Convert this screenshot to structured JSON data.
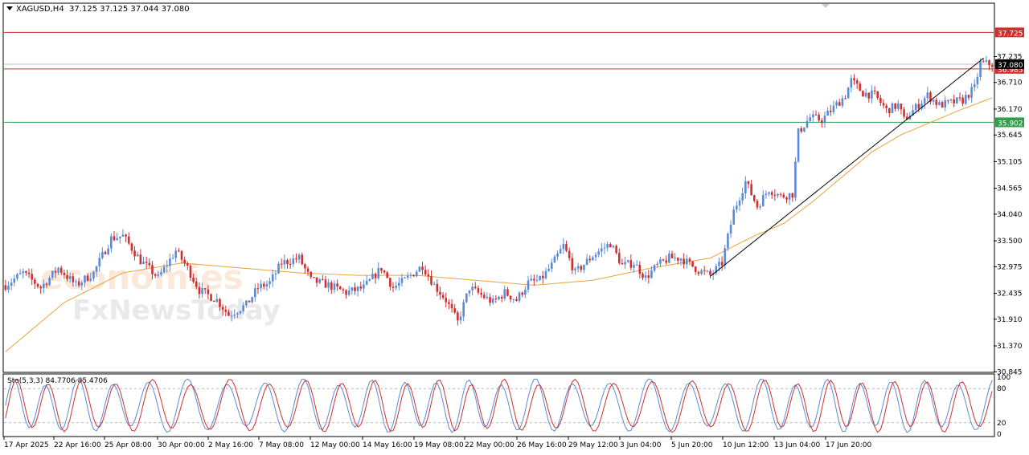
{
  "header": {
    "symbol": "XAGUSD,H4",
    "ohlc": "37.125 37.125 37.044 37.080"
  },
  "oscillator": {
    "label": "Sto(5,3,3) 84.7706 85.4706",
    "scale": [
      "100",
      "80",
      "20",
      "0"
    ]
  },
  "watermark": {
    "line1": "economies",
    "line2": "FxNewsToday"
  },
  "colors": {
    "bull": "#5b8bd6",
    "bear": "#d12f2f",
    "ma": "#e8a33c",
    "resistance": "#d12f2f",
    "support": "#2e9e4a",
    "trendline": "#000000",
    "sto_main": "#5b8bd6",
    "sto_signal": "#d12f2f"
  },
  "chart_data": {
    "type": "candlestick",
    "ylim": [
      30.85,
      38.3
    ],
    "price_ticks": [
      "37.235",
      "36.710",
      "36.170",
      "35.645",
      "35.105",
      "34.565",
      "34.040",
      "33.500",
      "32.975",
      "32.435",
      "31.910",
      "31.370",
      "30.845"
    ],
    "x_ticks": [
      "17 Apr 2025",
      "22 Apr 16:00",
      "25 Apr 08:00",
      "30 Apr 00:00",
      "2 May 16:00",
      "7 May 08:00",
      "12 May 00:00",
      "14 May 16:00",
      "19 May 08:00",
      "22 May 00:00",
      "26 May 16:00",
      "29 May 12:00",
      "3 Jun 04:00",
      "5 Jun 20:00",
      "10 Jun 12:00",
      "13 Jun 04:00",
      "17 Jun 20:00"
    ],
    "levels": [
      {
        "label": "37.725",
        "value": 37.725,
        "color": "resistance"
      },
      {
        "label": "36.985",
        "value": 36.985,
        "color": "resistance"
      },
      {
        "label": "35.902",
        "value": 35.902,
        "color": "support"
      }
    ],
    "current_price": "37.080",
    "trendline": {
      "from": [
        240,
        32.78
      ],
      "to": [
        333,
        37.2
      ]
    },
    "close_path": [
      [
        0,
        32.6
      ],
      [
        6,
        32.85
      ],
      [
        12,
        32.55
      ],
      [
        18,
        32.95
      ],
      [
        24,
        32.6
      ],
      [
        30,
        32.85
      ],
      [
        36,
        33.55
      ],
      [
        40,
        33.6
      ],
      [
        46,
        33.1
      ],
      [
        52,
        32.75
      ],
      [
        58,
        33.3
      ],
      [
        62,
        32.95
      ],
      [
        66,
        32.5
      ],
      [
        72,
        32.3
      ],
      [
        76,
        32.0
      ],
      [
        82,
        32.2
      ],
      [
        86,
        32.55
      ],
      [
        90,
        32.65
      ],
      [
        94,
        33.05
      ],
      [
        100,
        33.15
      ],
      [
        104,
        32.7
      ],
      [
        110,
        32.6
      ],
      [
        116,
        32.45
      ],
      [
        122,
        32.55
      ],
      [
        128,
        32.95
      ],
      [
        132,
        32.55
      ],
      [
        136,
        32.7
      ],
      [
        142,
        33.0
      ],
      [
        146,
        32.6
      ],
      [
        150,
        32.3
      ],
      [
        154,
        31.85
      ],
      [
        158,
        32.55
      ],
      [
        162,
        32.4
      ],
      [
        166,
        32.25
      ],
      [
        170,
        32.45
      ],
      [
        174,
        32.3
      ],
      [
        178,
        32.65
      ],
      [
        182,
        32.7
      ],
      [
        186,
        33.0
      ],
      [
        190,
        33.4
      ],
      [
        194,
        32.85
      ],
      [
        200,
        33.2
      ],
      [
        206,
        33.45
      ],
      [
        210,
        33.0
      ],
      [
        214,
        33.05
      ],
      [
        218,
        32.75
      ],
      [
        222,
        33.0
      ],
      [
        226,
        33.15
      ],
      [
        230,
        33.15
      ],
      [
        236,
        32.9
      ],
      [
        240,
        32.8
      ],
      [
        244,
        33.05
      ],
      [
        248,
        34.1
      ],
      [
        252,
        34.7
      ],
      [
        256,
        34.2
      ],
      [
        260,
        34.55
      ],
      [
        264,
        34.4
      ],
      [
        268,
        34.45
      ],
      [
        270,
        35.7
      ],
      [
        274,
        36.0
      ],
      [
        278,
        35.95
      ],
      [
        282,
        36.2
      ],
      [
        286,
        36.45
      ],
      [
        288,
        36.75
      ],
      [
        292,
        36.5
      ],
      [
        296,
        36.45
      ],
      [
        300,
        36.15
      ],
      [
        304,
        36.25
      ],
      [
        306,
        35.95
      ],
      [
        310,
        36.2
      ],
      [
        314,
        36.45
      ],
      [
        318,
        36.25
      ],
      [
        322,
        36.3
      ],
      [
        326,
        36.35
      ],
      [
        330,
        36.6
      ],
      [
        332,
        37.1
      ],
      [
        336,
        37.08
      ]
    ],
    "ma_path": [
      [
        0,
        31.25
      ],
      [
        20,
        32.25
      ],
      [
        40,
        32.85
      ],
      [
        60,
        33.05
      ],
      [
        80,
        32.95
      ],
      [
        100,
        32.85
      ],
      [
        120,
        32.8
      ],
      [
        140,
        32.8
      ],
      [
        160,
        32.7
      ],
      [
        180,
        32.6
      ],
      [
        200,
        32.7
      ],
      [
        220,
        32.95
      ],
      [
        240,
        33.15
      ],
      [
        255,
        33.6
      ],
      [
        265,
        33.85
      ],
      [
        275,
        34.3
      ],
      [
        285,
        34.8
      ],
      [
        295,
        35.3
      ],
      [
        305,
        35.65
      ],
      [
        315,
        35.9
      ],
      [
        325,
        36.15
      ],
      [
        336,
        36.4
      ]
    ],
    "stochastic": {
      "ylim": [
        0,
        100
      ],
      "levels": [
        80,
        20
      ],
      "period_bars": 12
    }
  }
}
